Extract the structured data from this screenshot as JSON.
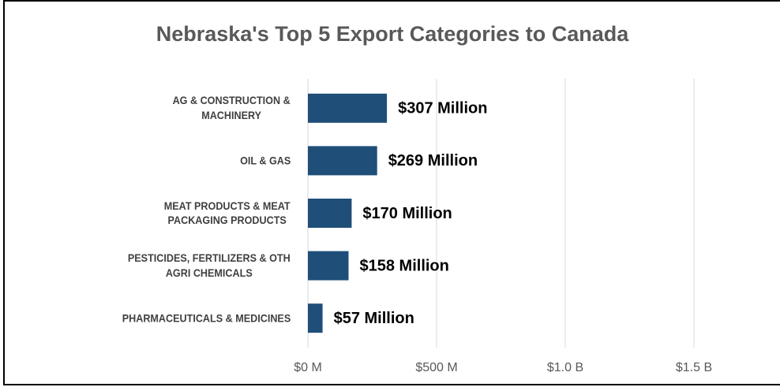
{
  "chart_data": {
    "type": "barh",
    "title": "Nebraska's Top 5 Export Categories to Canada",
    "categories": [
      "AG & CONSTRUCTION &\nMACHINERY",
      "OIL & GAS",
      "MEAT PRODUCTS & MEAT\nPACKAGING PRODUCTS",
      "PESTICIDES, FERTILIZERS & OTH\nAGRI CHEMICALS",
      "PHARMACEUTICALS & MEDICINES"
    ],
    "values": [
      307,
      269,
      170,
      158,
      57
    ],
    "value_labels": [
      "$307 Million",
      "$269 Million",
      "$170 Million",
      "$158 Million",
      "$57 Million"
    ],
    "color": "#1f4e79",
    "xlim": [
      0,
      1800
    ],
    "xticks": [
      {
        "value": 0,
        "label": "$0 M"
      },
      {
        "value": 500,
        "label": "$500 M"
      },
      {
        "value": 1000,
        "label": "$1.0 B"
      },
      {
        "value": 1500,
        "label": "$1.5 B"
      }
    ],
    "grid": true
  }
}
